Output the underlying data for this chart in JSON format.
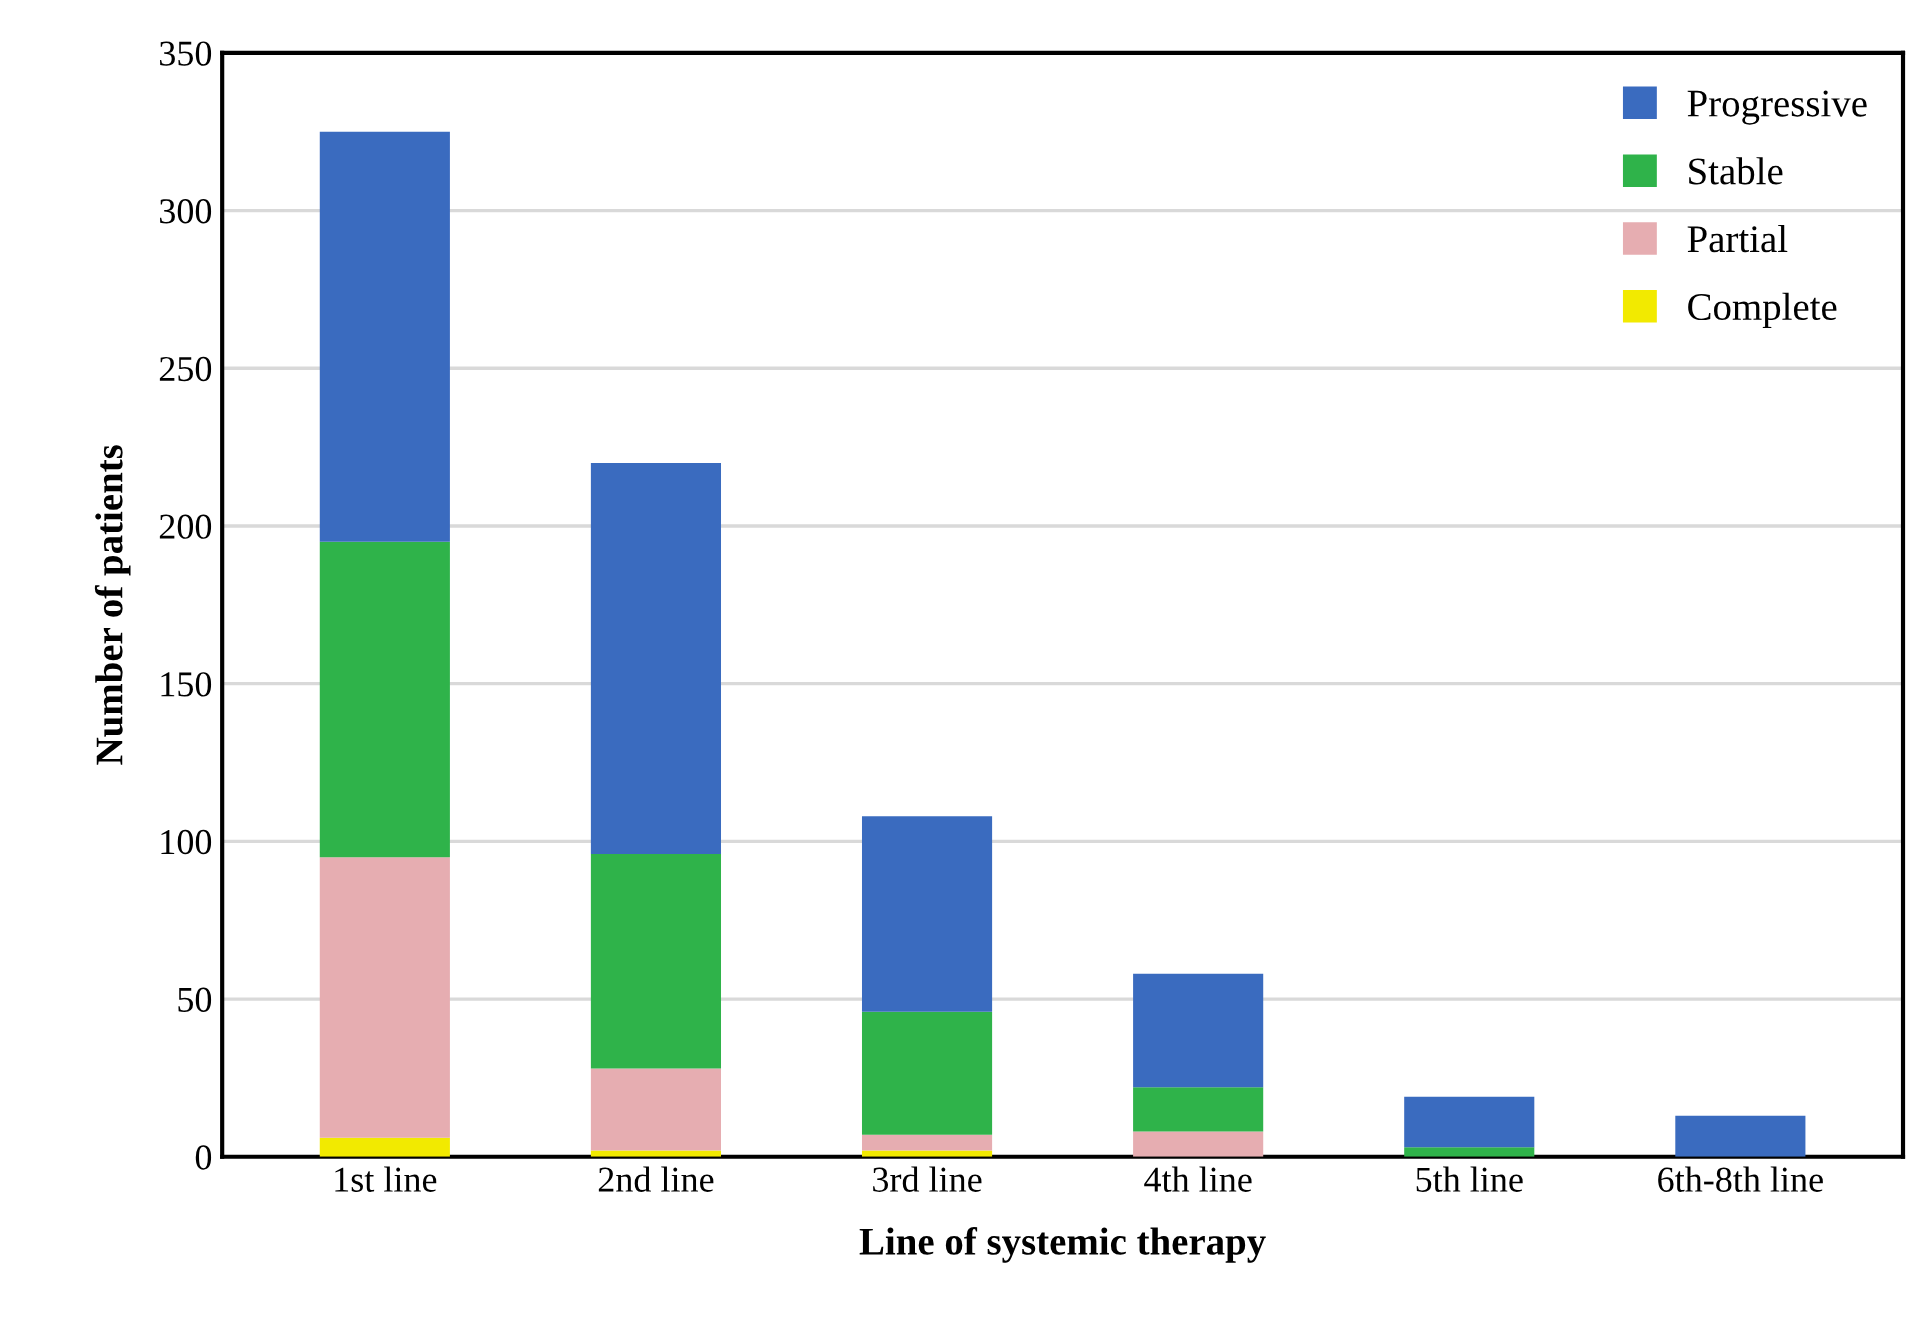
{
  "chart_data": {
    "type": "bar",
    "stacked": true,
    "xlabel": "Line of systemic therapy",
    "ylabel": "Number of patients",
    "categories": [
      "1st line",
      "2nd line",
      "3rd line",
      "4th line",
      "5th line",
      "6th-8th line"
    ],
    "series": [
      {
        "name": "Complete",
        "color": "#f2ea00",
        "values": [
          6,
          2,
          2,
          0,
          0,
          0
        ]
      },
      {
        "name": "Partial",
        "color": "#e6adb1",
        "values": [
          89,
          26,
          5,
          8,
          0,
          0
        ]
      },
      {
        "name": "Stable",
        "color": "#2fb34a",
        "values": [
          100,
          68,
          39,
          14,
          3,
          0
        ]
      },
      {
        "name": "Progressive",
        "color": "#3a6bbf",
        "values": [
          130,
          124,
          62,
          36,
          16,
          13
        ]
      }
    ],
    "ylim": [
      0,
      350
    ],
    "yticks": [
      0,
      50,
      100,
      150,
      200,
      250,
      300,
      350
    ],
    "grid": "y",
    "legend": "top right"
  }
}
